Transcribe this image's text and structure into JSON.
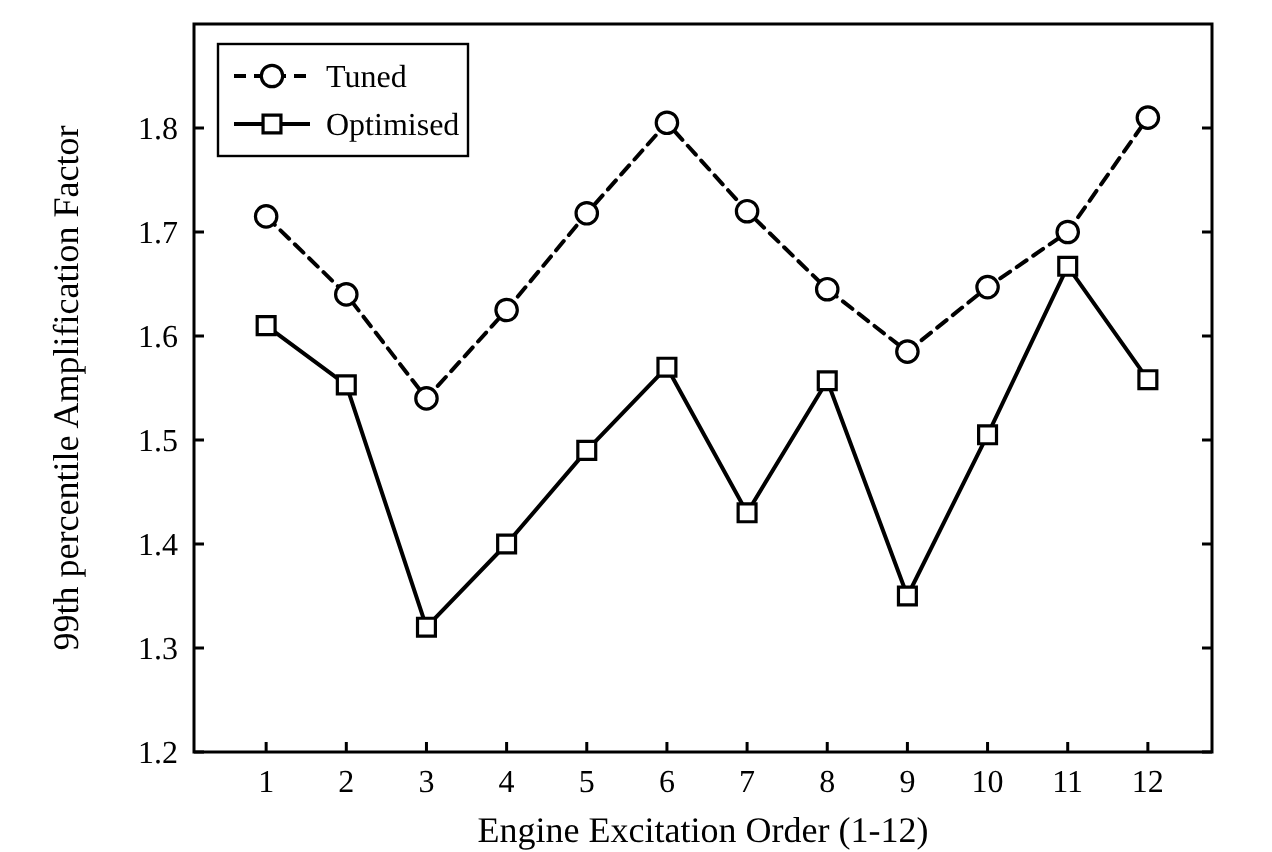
{
  "chart_data": {
    "type": "line",
    "xlabel": "Engine Excitation Order (1-12)",
    "ylabel": "99th percentile Amplification Factor",
    "x": [
      1,
      2,
      3,
      4,
      5,
      6,
      7,
      8,
      9,
      10,
      11,
      12
    ],
    "xlim": [
      0.1,
      12.8
    ],
    "xticks": [
      1,
      2,
      3,
      4,
      5,
      6,
      7,
      8,
      9,
      10,
      11,
      12
    ],
    "ylim": [
      1.2,
      1.9
    ],
    "yticks": [
      1.2,
      1.3,
      1.4,
      1.5,
      1.6,
      1.7,
      1.8
    ],
    "grid": false,
    "legend": "top left",
    "series": [
      {
        "name": "Tuned",
        "color": "#000000",
        "marker": "circle",
        "line_style": "dashed",
        "values": [
          1.715,
          1.64,
          1.54,
          1.625,
          1.718,
          1.805,
          1.72,
          1.645,
          1.585,
          1.647,
          1.7,
          1.81
        ]
      },
      {
        "name": "Optimised",
        "color": "#000000",
        "marker": "square",
        "line_style": "solid",
        "values": [
          1.61,
          1.553,
          1.32,
          1.4,
          1.49,
          1.57,
          1.43,
          1.557,
          1.35,
          1.505,
          1.667,
          1.558
        ]
      }
    ]
  }
}
